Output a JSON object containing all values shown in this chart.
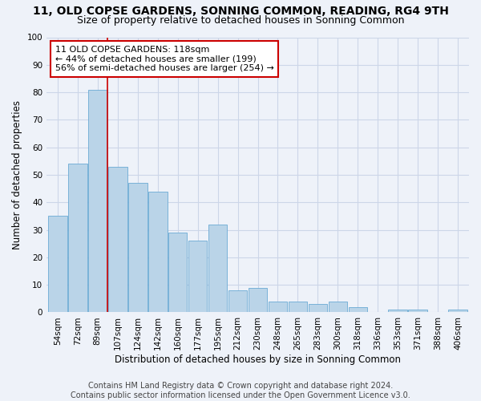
{
  "title": "11, OLD COPSE GARDENS, SONNING COMMON, READING, RG4 9TH",
  "subtitle": "Size of property relative to detached houses in Sonning Common",
  "xlabel": "Distribution of detached houses by size in Sonning Common",
  "ylabel": "Number of detached properties",
  "categories": [
    "54sqm",
    "72sqm",
    "89sqm",
    "107sqm",
    "124sqm",
    "142sqm",
    "160sqm",
    "177sqm",
    "195sqm",
    "212sqm",
    "230sqm",
    "248sqm",
    "265sqm",
    "283sqm",
    "300sqm",
    "318sqm",
    "336sqm",
    "353sqm",
    "371sqm",
    "388sqm",
    "406sqm"
  ],
  "values": [
    35,
    54,
    81,
    53,
    47,
    44,
    29,
    26,
    32,
    8,
    9,
    4,
    4,
    3,
    4,
    2,
    0,
    1,
    1,
    0,
    1
  ],
  "bar_color": "#bad4e8",
  "bar_edge_color": "#6aaad4",
  "vertical_line_x": 2.5,
  "vline_color": "#cc0000",
  "annotation_text": "11 OLD COPSE GARDENS: 118sqm\n← 44% of detached houses are smaller (199)\n56% of semi-detached houses are larger (254) →",
  "annotation_box_color": "#ffffff",
  "annotation_box_edge_color": "#cc0000",
  "ylim": [
    0,
    100
  ],
  "yticks": [
    0,
    10,
    20,
    30,
    40,
    50,
    60,
    70,
    80,
    90,
    100
  ],
  "footer_text": "Contains HM Land Registry data © Crown copyright and database right 2024.\nContains public sector information licensed under the Open Government Licence v3.0.",
  "bg_color": "#eef2f9",
  "grid_color": "#ccd6e8",
  "title_fontsize": 10,
  "subtitle_fontsize": 9,
  "axis_label_fontsize": 8.5,
  "tick_fontsize": 7.5,
  "annotation_fontsize": 8,
  "footer_fontsize": 7
}
